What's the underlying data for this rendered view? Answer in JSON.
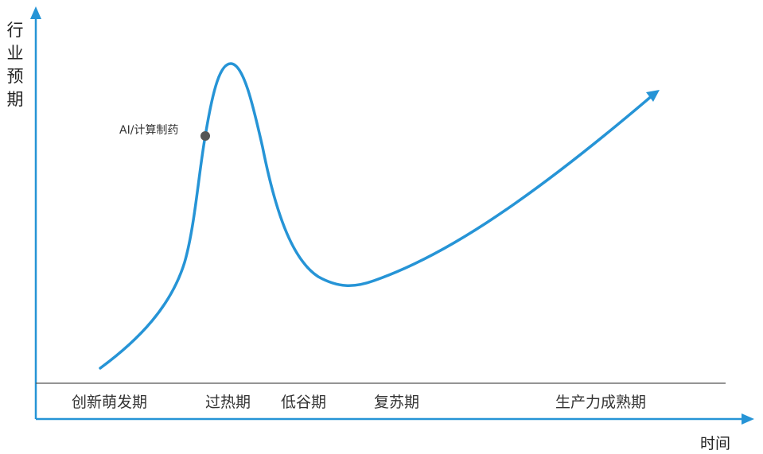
{
  "axes": {
    "y_label_chars": [
      "行",
      "业",
      "预",
      "期"
    ],
    "x_label": "时间"
  },
  "stages": [
    "创新萌发期",
    "过热期",
    "低谷期",
    "复苏期",
    "生产力成熟期"
  ],
  "marker": {
    "label": "AI/计算制药",
    "stage": "过热期"
  },
  "colors": {
    "curve": "#2694d6",
    "axis": "#2694d6",
    "baseline": "#555555",
    "marker": "#555555"
  }
}
